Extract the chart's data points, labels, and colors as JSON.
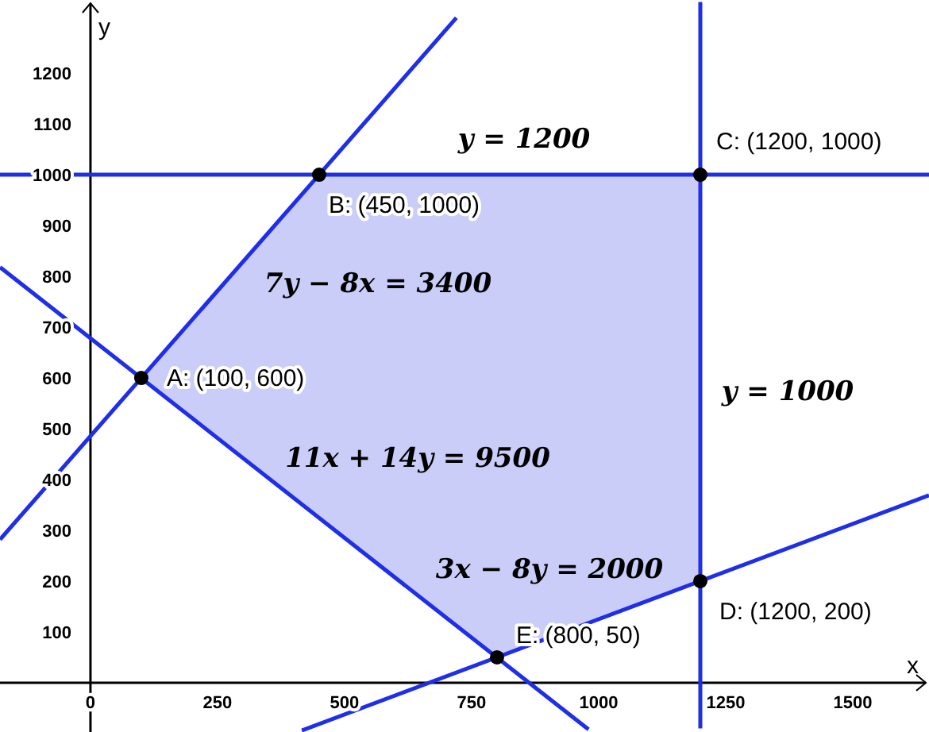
{
  "chart_data": {
    "type": "line",
    "xlabel": "x",
    "ylabel": "y",
    "xlim": [
      -178,
      1650
    ],
    "ylim": [
      -97,
      1344
    ],
    "xticks": [
      0,
      250,
      500,
      750,
      1000,
      1250,
      1500
    ],
    "yticks": [
      100,
      200,
      300,
      400,
      500,
      600,
      700,
      800,
      900,
      1000,
      1100,
      1200
    ],
    "grid": false,
    "series": [
      {
        "type": "area",
        "color": "#c9cdf8",
        "x": [
          100,
          450,
          1200,
          1200,
          800
        ],
        "values": [
          600,
          1000,
          1000,
          200,
          50
        ]
      },
      {
        "color": "#1f2ee8",
        "x": [
          -178,
          720
        ],
        "values": [
          282,
          1309
        ]
      },
      {
        "color": "#1f2ee8",
        "x": [
          -178,
          980
        ],
        "values": [
          818,
          -92
        ]
      },
      {
        "color": "#1f2ee8",
        "x": [
          416,
          1650
        ],
        "values": [
          -94,
          369
        ]
      },
      {
        "color": "#1f2ee8",
        "x": [
          -178,
          1650
        ],
        "values": [
          1000,
          1000
        ]
      },
      {
        "color": "#1f2ee8",
        "x": [
          1200,
          1200
        ],
        "values": [
          -90,
          1340
        ]
      },
      {
        "type": "scatter",
        "color": "#000000",
        "marker": "circle",
        "x": [
          100,
          450,
          1200,
          1200,
          800
        ],
        "values": [
          600,
          1000,
          1000,
          200,
          50
        ]
      }
    ],
    "annotations": [
      {
        "text": "A: (100, 600)",
        "x": 100,
        "y": 600
      },
      {
        "text": "B: (450, 1000)",
        "x": 450,
        "y": 1000
      },
      {
        "text": "C: (1200, 1000)",
        "x": 1200,
        "y": 1000
      },
      {
        "text": "D: (1200, 200)",
        "x": 1200,
        "y": 200
      },
      {
        "text": "E: (800, 50)",
        "x": 800,
        "y": 50
      },
      "y = 1200",
      "7y − 8x = 3400",
      "11x + 14y = 9500",
      "3x − 8y = 2000",
      "y = 1000"
    ]
  }
}
